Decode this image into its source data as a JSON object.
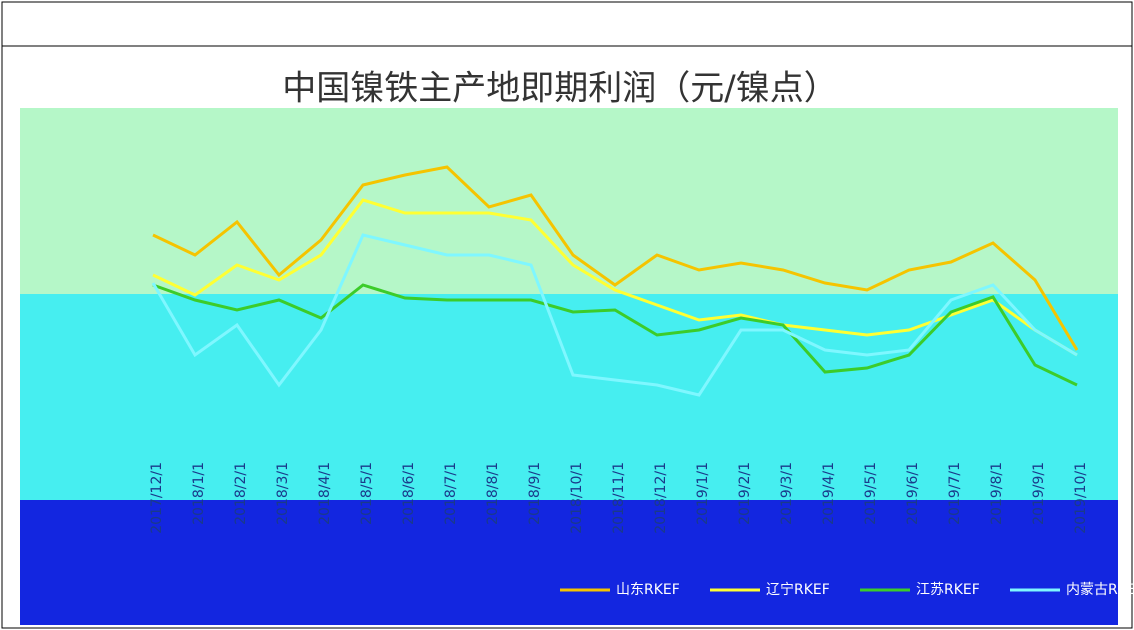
{
  "chart_data": {
    "type": "line",
    "title": "中国镍铁主产地即期利润（元/镍点）",
    "categories": [
      "2017/12/1",
      "2018/1/1",
      "2018/2/1",
      "2018/3/1",
      "2018/4/1",
      "2018/5/1",
      "2018/6/1",
      "2018/7/1",
      "2018/8/1",
      "2018/9/1",
      "2018/10/1",
      "2018/11/1",
      "2018/12/1",
      "2019/1/1",
      "2019/2/1",
      "2019/3/1",
      "2019/4/1",
      "2019/5/1",
      "2019/6/1",
      "2019/7/1",
      "2019/8/1",
      "2019/9/1",
      "2019/10/1"
    ],
    "series": [
      {
        "name": "山东RKEF",
        "color": "#f5c400",
        "values": [
          2150,
          1950,
          2280,
          1750,
          2100,
          2650,
          2750,
          2830,
          2430,
          2550,
          1950,
          1650,
          1950,
          1800,
          1870,
          1800,
          1670,
          1600,
          1800,
          1880,
          2070,
          1700,
          1000
        ]
      },
      {
        "name": "辽宁RKEF",
        "color": "#ffff33",
        "values": [
          1750,
          1550,
          1850,
          1700,
          1950,
          2500,
          2370,
          2370,
          2370,
          2300,
          1850,
          1600,
          1450,
          1300,
          1350,
          1250,
          1200,
          1150,
          1200,
          1350,
          1500,
          1200,
          950
        ]
      },
      {
        "name": "江苏RKEF",
        "color": "#3ccc2a",
        "values": [
          1650,
          1500,
          1400,
          1500,
          1320,
          1650,
          1520,
          1500,
          1500,
          1500,
          1380,
          1400,
          1150,
          1200,
          1320,
          1250,
          780,
          820,
          950,
          1380,
          1530,
          850,
          650
        ]
      },
      {
        "name": "内蒙古RKEF",
        "color": "#7ff7ff",
        "values": [
          1670,
          950,
          1250,
          650,
          1200,
          2150,
          2050,
          1950,
          1950,
          1850,
          750,
          700,
          650,
          550,
          1200,
          1200,
          1000,
          950,
          1000,
          1500,
          1650,
          1200,
          950
        ]
      }
    ],
    "ylim": [
      0,
      3400
    ]
  }
}
